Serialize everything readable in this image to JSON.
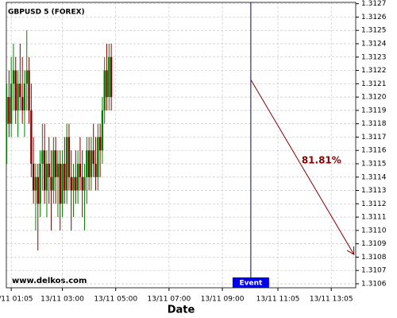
{
  "chart_data": {
    "type": "candlestick",
    "title": "GBPUSD 5 (FOREX)",
    "x_label": "Date",
    "watermark": "www.delkos.com",
    "up_color": "#008000",
    "down_color": "#8b0000",
    "grid": true,
    "xlim": [
      54,
      840
    ],
    "ylim": [
      1.31057,
      1.31271
    ],
    "xticks": [
      {
        "value": 65,
        "label": "13/11 01:05"
      },
      {
        "value": 180,
        "label": "13/11 03:00"
      },
      {
        "value": 300,
        "label": "13/11 05:00"
      },
      {
        "value": 420,
        "label": "13/11 07:00"
      },
      {
        "value": 540,
        "label": "13/11 09:00"
      },
      {
        "value": 665,
        "label": "13/11 11:05"
      },
      {
        "value": 785,
        "label": "13/11 13:05"
      }
    ],
    "yticks": [
      1.3106,
      1.3107,
      1.3108,
      1.3109,
      {
        "value": 1.311,
        "label": "1.3110"
      },
      1.3111,
      1.3112,
      1.3113,
      1.3114,
      1.3115,
      1.3116,
      1.3117,
      1.3118,
      1.3119,
      {
        "value": 1.312,
        "label": "1.3120"
      },
      1.3121,
      1.3122,
      1.3123,
      1.3124,
      1.3125,
      1.3126,
      1.3127
    ],
    "x": [
      55,
      60,
      65,
      70,
      75,
      80,
      85,
      90,
      95,
      100,
      105,
      110,
      115,
      120,
      125,
      130,
      135,
      140,
      145,
      150,
      155,
      160,
      165,
      170,
      175,
      180,
      185,
      190,
      195,
      200,
      205,
      210,
      215,
      220,
      225,
      230,
      235,
      240,
      245,
      250,
      255,
      260,
      265,
      270,
      275,
      280,
      285,
      290
    ],
    "open": [
      1.3118,
      1.312,
      1.3118,
      1.3121,
      1.3122,
      1.3119,
      1.3121,
      1.312,
      1.3119,
      1.3121,
      1.3122,
      1.3119,
      1.3115,
      1.3113,
      1.3114,
      1.3112,
      1.3115,
      1.3116,
      1.3113,
      1.3115,
      1.3114,
      1.3113,
      1.3116,
      1.3114,
      1.3115,
      1.3112,
      1.3115,
      1.3113,
      1.3117,
      1.3114,
      1.3113,
      1.3114,
      1.3113,
      1.3115,
      1.3114,
      1.3113,
      1.3114,
      1.3116,
      1.3114,
      1.3116,
      1.3115,
      1.3114,
      1.3117,
      1.3116,
      1.3119,
      1.3122,
      1.312,
      1.3123
    ],
    "high": [
      1.3121,
      1.3122,
      1.3123,
      1.3124,
      1.3123,
      1.3122,
      1.3124,
      1.3123,
      1.3122,
      1.3125,
      1.3123,
      1.3121,
      1.3117,
      1.3115,
      1.3115,
      1.3116,
      1.3118,
      1.3118,
      1.3116,
      1.3117,
      1.3116,
      1.3117,
      1.3117,
      1.3116,
      1.3116,
      1.3116,
      1.3117,
      1.3118,
      1.3118,
      1.3116,
      1.3115,
      1.3116,
      1.3116,
      1.3117,
      1.3116,
      1.3115,
      1.3117,
      1.3117,
      1.3117,
      1.3118,
      1.3117,
      1.3118,
      1.3118,
      1.312,
      1.3123,
      1.3124,
      1.3124,
      1.3124
    ],
    "low": [
      1.3115,
      1.3117,
      1.3117,
      1.3119,
      1.3118,
      1.3117,
      1.3119,
      1.3118,
      1.3117,
      1.3119,
      1.3118,
      1.3114,
      1.3112,
      1.311,
      1.31085,
      1.3111,
      1.3113,
      1.3112,
      1.3111,
      1.3112,
      1.311,
      1.3112,
      1.3112,
      1.3111,
      1.311,
      1.3111,
      1.3112,
      1.3112,
      1.3113,
      1.311,
      1.3111,
      1.3112,
      1.3112,
      1.3113,
      1.3111,
      1.311,
      1.3112,
      1.3113,
      1.3113,
      1.3114,
      1.3113,
      1.3113,
      1.3114,
      1.3115,
      1.3118,
      1.3119,
      1.3119,
      1.3119
    ],
    "close": [
      1.312,
      1.3118,
      1.3121,
      1.3122,
      1.3119,
      1.3121,
      1.312,
      1.3119,
      1.3121,
      1.3122,
      1.3119,
      1.3115,
      1.3113,
      1.3114,
      1.3112,
      1.3115,
      1.3116,
      1.3113,
      1.3115,
      1.3114,
      1.3113,
      1.3116,
      1.3114,
      1.3115,
      1.3112,
      1.3115,
      1.3113,
      1.3117,
      1.3114,
      1.3113,
      1.3114,
      1.3113,
      1.3115,
      1.3114,
      1.3113,
      1.3114,
      1.3116,
      1.3114,
      1.3116,
      1.3115,
      1.3114,
      1.3117,
      1.3116,
      1.3119,
      1.3122,
      1.312,
      1.3123,
      1.312
    ],
    "event": {
      "label": "Event",
      "x": 604,
      "color": "#00008b",
      "box_color": "#0000ee"
    },
    "forecast": {
      "x": [
        604,
        836
      ],
      "y": [
        1.31213,
        1.31082
      ],
      "value": 81.81,
      "value_label": "81.81%",
      "color": "#8b0000"
    }
  }
}
